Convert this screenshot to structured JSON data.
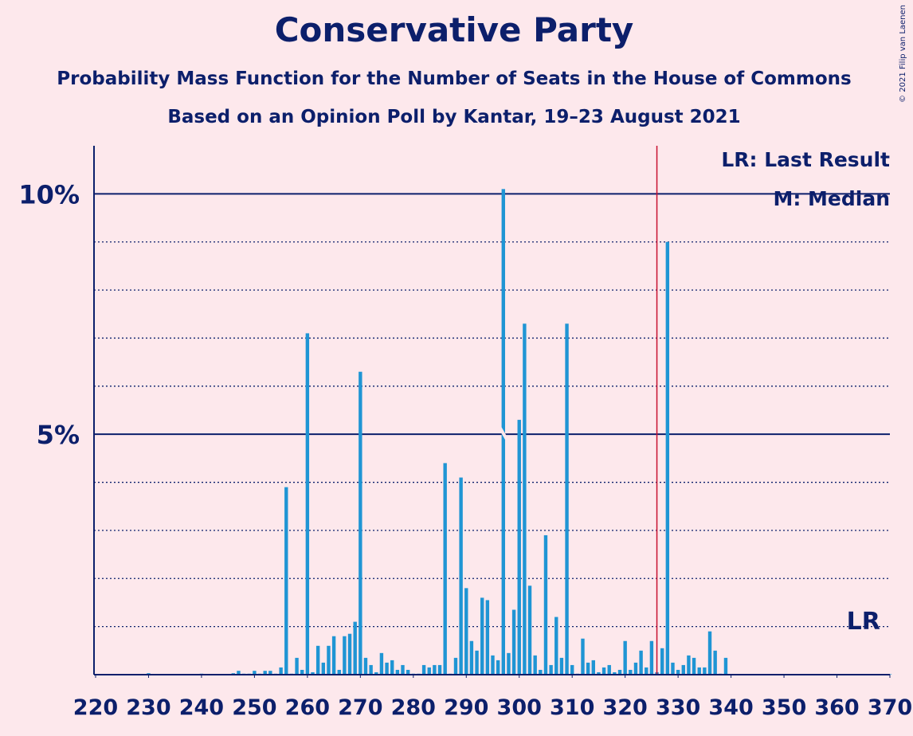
{
  "chart_data": {
    "type": "bar",
    "title": "Conservative Party",
    "subtitle": "Probability Mass Function for the Number of Seats in the House of Commons",
    "subtitle2": "Based on an Opinion Poll by Kantar, 19–23 August 2021",
    "credit": "© 2021 Filip van Laenen",
    "legend_lr": "LR: Last Result",
    "legend_median": "M: Median",
    "color": "#1f95d4",
    "x": [
      220,
      221,
      222,
      223,
      224,
      225,
      226,
      227,
      228,
      229,
      230,
      231,
      232,
      233,
      234,
      235,
      236,
      237,
      238,
      239,
      240,
      241,
      242,
      243,
      244,
      245,
      246,
      247,
      248,
      249,
      250,
      251,
      252,
      253,
      254,
      255,
      256,
      257,
      258,
      259,
      260,
      261,
      262,
      263,
      264,
      265,
      266,
      267,
      268,
      269,
      270,
      271,
      272,
      273,
      274,
      275,
      276,
      277,
      278,
      279,
      280,
      281,
      282,
      283,
      284,
      285,
      286,
      287,
      288,
      289,
      290,
      291,
      292,
      293,
      294,
      295,
      296,
      297,
      298,
      299,
      300,
      301,
      302,
      303,
      304,
      305,
      306,
      307,
      308,
      309,
      310,
      311,
      312,
      313,
      314,
      315,
      316,
      317,
      318,
      319,
      320,
      321,
      322,
      323,
      324,
      325,
      326,
      327,
      328,
      329,
      330,
      331,
      332,
      333,
      334,
      335,
      336,
      337,
      338,
      339,
      340,
      341,
      342,
      343,
      344,
      345,
      346,
      347,
      348,
      349,
      350,
      351,
      352,
      353,
      354,
      355,
      356,
      357,
      358,
      359,
      360,
      361,
      362,
      363,
      364,
      365,
      366,
      367,
      368,
      369,
      370
    ],
    "values": [
      0.01,
      0.01,
      0.01,
      0.01,
      0.01,
      0.01,
      0.01,
      0.01,
      0.01,
      0.01,
      0.03,
      0.01,
      0.01,
      0.01,
      0.01,
      0.01,
      0.01,
      0.01,
      0.01,
      0.01,
      0.02,
      0.01,
      0.01,
      0.01,
      0.01,
      0.01,
      0.03,
      0.08,
      0.02,
      0.02,
      0.08,
      0.02,
      0.08,
      0.08,
      0.02,
      0.15,
      3.9,
      0.02,
      0.35,
      0.1,
      7.1,
      0.05,
      0.6,
      0.25,
      0.6,
      0.8,
      0.1,
      0.8,
      0.85,
      1.1,
      6.3,
      0.35,
      0.2,
      0.05,
      0.45,
      0.25,
      0.3,
      0.1,
      0.2,
      0.1,
      0.02,
      0.02,
      0.2,
      0.15,
      0.2,
      0.2,
      4.4,
      0.02,
      0.35,
      4.1,
      1.8,
      0.7,
      0.5,
      1.6,
      1.55,
      0.4,
      0.3,
      10.1,
      0.45,
      1.35,
      5.3,
      7.3,
      1.85,
      0.4,
      0.1,
      2.9,
      0.2,
      1.2,
      0.35,
      7.3,
      0.2,
      0.02,
      0.75,
      0.25,
      0.3,
      0.05,
      0.15,
      0.2,
      0.05,
      0.1,
      0.7,
      0.1,
      0.25,
      0.5,
      0.15,
      0.7,
      0.05,
      0.55,
      9.0,
      0.25,
      0.1,
      0.2,
      0.4,
      0.35,
      0.15,
      0.15,
      0.9,
      0.5,
      0.02,
      0.35,
      0.01,
      0.01,
      0.01,
      0.01,
      0.01,
      0.01,
      0.01,
      0.01,
      0.01,
      0.01,
      0.01,
      0.01,
      0.01,
      0.01,
      0.01,
      0.01,
      0.01,
      0.01,
      0.01,
      0.01,
      0.01,
      0.01,
      0.01,
      0.01,
      0.01,
      0.01,
      0.01,
      0.01,
      0.01,
      0.01,
      0.01
    ],
    "xlim": [
      219.7,
      370
    ],
    "xticks": [
      220,
      230,
      240,
      250,
      260,
      270,
      280,
      290,
      300,
      310,
      320,
      330,
      340,
      350,
      360,
      370
    ],
    "ylim": [
      0,
      11
    ],
    "yticks": [
      {
        "value": 5,
        "label": "5%"
      },
      {
        "value": 10,
        "label": "10%"
      }
    ],
    "minor_gridlines": [
      1,
      2,
      3,
      4,
      6,
      7,
      8,
      9
    ],
    "majority": 326,
    "median": 297,
    "last_result": {
      "value": 365,
      "label": "LR"
    }
  }
}
